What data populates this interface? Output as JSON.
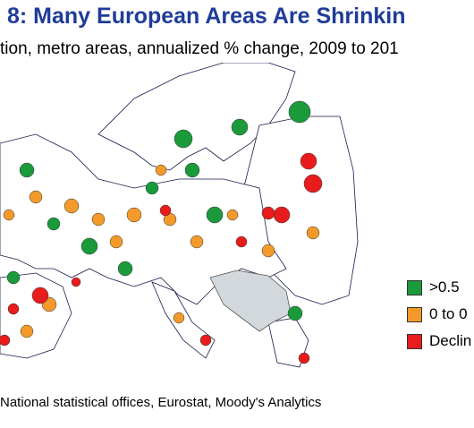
{
  "title": "8: Many European Areas Are Shrinkin",
  "subtitle": "tion, metro areas, annualized % change, 2009 to 201",
  "legend": [
    {
      "label": ">0.5",
      "color": "#1a9a3a"
    },
    {
      "label": "0 to 0",
      "color": "#f39a2b"
    },
    {
      "label": "Declin",
      "color": "#e81c1c"
    }
  ],
  "source": "National statistical offices, Eurostat, Moody's Analytics"
}
